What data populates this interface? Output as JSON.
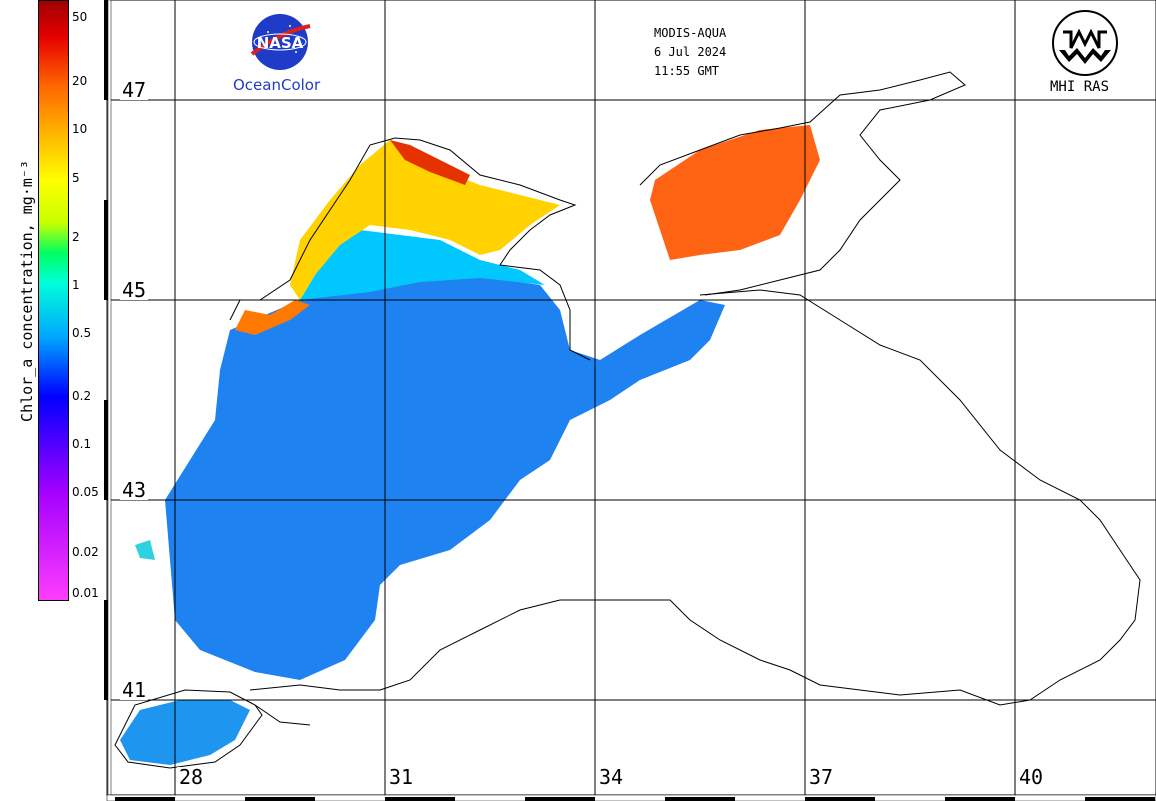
{
  "colorbar": {
    "label": "Chlor_a concentration, mg·m⁻³",
    "ticks": [
      "50",
      "20",
      "10",
      "5",
      "2",
      "1",
      "0.5",
      "0.2",
      "0.1",
      "0.05",
      "0.02",
      "0.01"
    ],
    "colors": [
      "#ff3cff",
      "#a400ff",
      "#0000ff",
      "#00a8ff",
      "#00ffd8",
      "#00ff60",
      "#ffff00",
      "#ffb400",
      "#ff6400",
      "#e60000",
      "#a00000"
    ]
  },
  "header": {
    "nasa_logo_text": "NASA",
    "oceancolor": "OceanColor",
    "sensor": "MODIS-AQUA",
    "date": "6 Jul 2024",
    "time": "11:55 GMT",
    "mhi_logo_text": "MHI RAS"
  },
  "grid": {
    "latitudes": [
      "47",
      "45",
      "43",
      "41"
    ],
    "longitudes": [
      "28",
      "31",
      "34",
      "37",
      "40"
    ]
  },
  "water_colors": {
    "open_sea": "#1e82f0",
    "shelf": "#00c8ff",
    "coastal_high": "#ff9600",
    "azov": "#ff6414",
    "land": "#ffffff"
  }
}
